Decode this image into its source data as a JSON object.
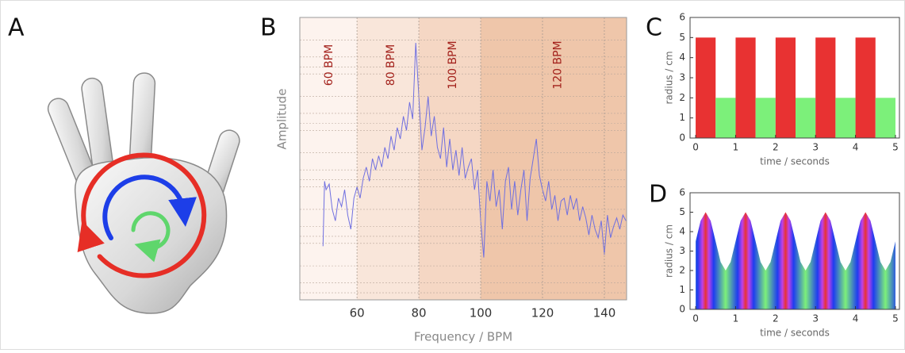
{
  "panel_labels": [
    "A",
    "B",
    "C",
    "D"
  ],
  "chart_data": [
    {
      "type": "line",
      "xlabel": "Frequency / BPM",
      "ylabel": "Amplitude",
      "xlim": [
        41.5,
        147.2
      ],
      "xticks": [
        60,
        80,
        100,
        120,
        140
      ],
      "ylim": [
        0,
        100
      ],
      "grid": true,
      "bands": {
        "edges": [
          60,
          80,
          100
        ],
        "colors": [
          "#fdf3ee",
          "#f9e6da",
          "#f5d7c4",
          "#efc6aa"
        ]
      },
      "annotations": [
        {
          "text": "60 BPM",
          "x": 51
        },
        {
          "text": "80 BPM",
          "x": 71
        },
        {
          "text": "100 BPM",
          "x": 91
        },
        {
          "text": "120 BPM",
          "x": 125
        }
      ],
      "annotation_color": "#a3221c",
      "color": "#6f6fe0",
      "x": [
        49,
        49.5,
        50,
        51,
        52,
        53,
        54,
        55,
        56,
        57,
        58,
        59,
        60,
        61,
        62,
        63,
        64,
        65,
        66,
        67,
        68,
        69,
        70,
        71,
        72,
        73,
        74,
        75,
        76,
        77,
        78,
        79,
        80,
        81,
        82,
        83,
        84,
        85,
        86,
        87,
        88,
        89,
        90,
        91,
        92,
        93,
        94,
        95,
        96,
        97,
        98,
        99,
        100,
        101,
        102,
        103,
        104,
        105,
        106,
        107,
        108,
        109,
        110,
        111,
        112,
        113,
        114,
        115,
        116,
        117,
        118,
        119,
        120,
        121,
        122,
        123,
        124,
        125,
        126,
        127,
        128,
        129,
        130,
        131,
        132,
        133,
        134,
        135,
        136,
        137,
        138,
        139,
        140,
        141,
        142,
        143,
        144,
        145,
        146,
        147
      ],
      "values": [
        19,
        42,
        39,
        41,
        32,
        28,
        36,
        33,
        39,
        30,
        25,
        36,
        40,
        36,
        43,
        47,
        42,
        50,
        46,
        51,
        47,
        54,
        50,
        58,
        53,
        61,
        57,
        65,
        60,
        70,
        64,
        91,
        72,
        53,
        61,
        72,
        58,
        65,
        54,
        50,
        61,
        47,
        57,
        46,
        53,
        44,
        54,
        43,
        47,
        50,
        39,
        46,
        28,
        15,
        42,
        35,
        46,
        33,
        39,
        25,
        42,
        47,
        32,
        42,
        30,
        39,
        46,
        28,
        43,
        50,
        57,
        44,
        39,
        35,
        42,
        32,
        37,
        28,
        35,
        36,
        30,
        37,
        32,
        36,
        28,
        33,
        29,
        23,
        30,
        25,
        22,
        28,
        16,
        30,
        22,
        26,
        29,
        25,
        30,
        28
      ]
    },
    {
      "type": "histogram",
      "xlabel": "time / seconds",
      "ylabel": "radius / cm",
      "xlim": [
        -0.14,
        5.1
      ],
      "xticks": [
        0,
        1,
        2,
        3,
        4,
        5
      ],
      "ylim": [
        0,
        6
      ],
      "yticks": [
        0,
        1,
        2,
        3,
        4,
        5,
        6
      ],
      "bins": [
        0,
        0.5,
        1,
        1.5,
        2,
        2.5,
        3,
        3.5,
        4,
        4.5,
        5
      ],
      "values": [
        5,
        2,
        5,
        2,
        5,
        2,
        5,
        2,
        5,
        2
      ],
      "colors": [
        "#e83232",
        "#7cf07a",
        "#e83232",
        "#7cf07a",
        "#e83232",
        "#7cf07a",
        "#e83232",
        "#7cf07a",
        "#e83232",
        "#7cf07a"
      ]
    },
    {
      "type": "area",
      "xlabel": "time / seconds",
      "ylabel": "radius / cm",
      "xlim": [
        -0.14,
        5.1
      ],
      "xticks": [
        0,
        1,
        2,
        3,
        4,
        5
      ],
      "ylim": [
        0,
        6
      ],
      "yticks": [
        0,
        1,
        2,
        3,
        4,
        5,
        6
      ],
      "fill_colors": [
        "#7cf07a",
        "#1e3cf0",
        "#c040e8",
        "#e83232"
      ],
      "x": [
        0,
        0.125,
        0.25,
        0.375,
        0.5,
        0.625,
        0.75,
        0.875,
        1,
        1.125,
        1.25,
        1.375,
        1.5,
        1.625,
        1.75,
        1.875,
        2,
        2.125,
        2.25,
        2.375,
        2.5,
        2.625,
        2.75,
        2.875,
        3,
        3.125,
        3.25,
        3.375,
        3.5,
        3.625,
        3.75,
        3.875,
        4,
        4.125,
        4.25,
        4.375,
        4.5,
        4.625,
        4.75,
        4.875,
        5
      ],
      "values": [
        3.5,
        4.56,
        5,
        4.56,
        3.5,
        2.44,
        2,
        2.44,
        3.5,
        4.56,
        5,
        4.56,
        3.5,
        2.44,
        2,
        2.44,
        3.5,
        4.56,
        5,
        4.56,
        3.5,
        2.44,
        2,
        2.44,
        3.5,
        4.56,
        5,
        4.56,
        3.5,
        2.44,
        2,
        2.44,
        3.5,
        4.56,
        5,
        4.56,
        3.5,
        2.44,
        2,
        2.44,
        3.5
      ]
    }
  ]
}
